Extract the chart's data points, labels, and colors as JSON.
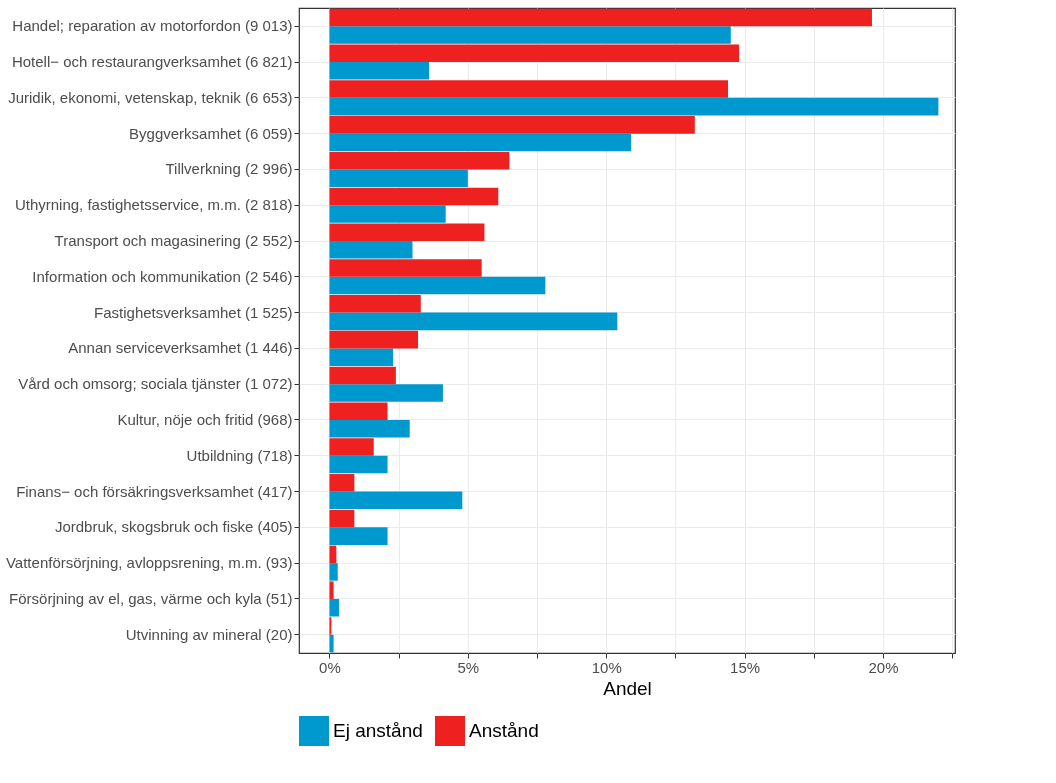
{
  "chart_data": {
    "type": "bar",
    "orientation": "horizontal",
    "xlabel": "Andel",
    "categories": [
      "Handel; reparation av motorfordon (9 013)",
      "Hotell− och restaurangverksamhet (6 821)",
      "Juridik, ekonomi, vetenskap, teknik (6 653)",
      "Byggverksamhet (6 059)",
      "Tillverkning (2 996)",
      "Uthyrning, fastighetsservice, m.m. (2 818)",
      "Transport och magasinering (2 552)",
      "Information och kommunikation (2 546)",
      "Fastighetsverksamhet (1 525)",
      "Annan serviceverksamhet (1 446)",
      "Vård och omsorg; sociala tjänster (1 072)",
      "Kultur, nöje och fritid (968)",
      "Utbildning (718)",
      "Finans− och försäkringsverksamhet (417)",
      "Jordbruk, skogsbruk och fiske (405)",
      "Vattenförsörjning, avloppsrening, m.m. (93)",
      "Försörjning av el, gas, värme och kyla (51)",
      "Utvinning av mineral (20)"
    ],
    "series": [
      {
        "name": "Ej anstånd",
        "color": "#0099cf",
        "values": [
          14.5,
          3.6,
          22.0,
          10.9,
          5.0,
          4.2,
          3.0,
          7.8,
          10.4,
          2.3,
          4.1,
          2.9,
          2.1,
          4.8,
          2.1,
          0.3,
          0.35,
          0.15
        ]
      },
      {
        "name": "Anstånd",
        "color": "#ee2020",
        "values": [
          19.6,
          14.8,
          14.4,
          13.2,
          6.5,
          6.1,
          5.6,
          5.5,
          3.3,
          3.2,
          2.4,
          2.1,
          1.6,
          0.9,
          0.9,
          0.25,
          0.15,
          0.07
        ]
      }
    ],
    "xlim": [
      -1.1,
      22.6
    ],
    "xticks": [
      {
        "value": 0,
        "label": "0%"
      },
      {
        "value": 2.5,
        "label": null
      },
      {
        "value": 5,
        "label": "5%"
      },
      {
        "value": 7.5,
        "label": null
      },
      {
        "value": 10,
        "label": "10%"
      },
      {
        "value": 12.5,
        "label": null
      },
      {
        "value": 15,
        "label": "15%"
      },
      {
        "value": 17.5,
        "label": null
      },
      {
        "value": 20,
        "label": "20%"
      },
      {
        "value": 22.5,
        "label": null
      }
    ],
    "grid": true,
    "legend": "bottom"
  }
}
